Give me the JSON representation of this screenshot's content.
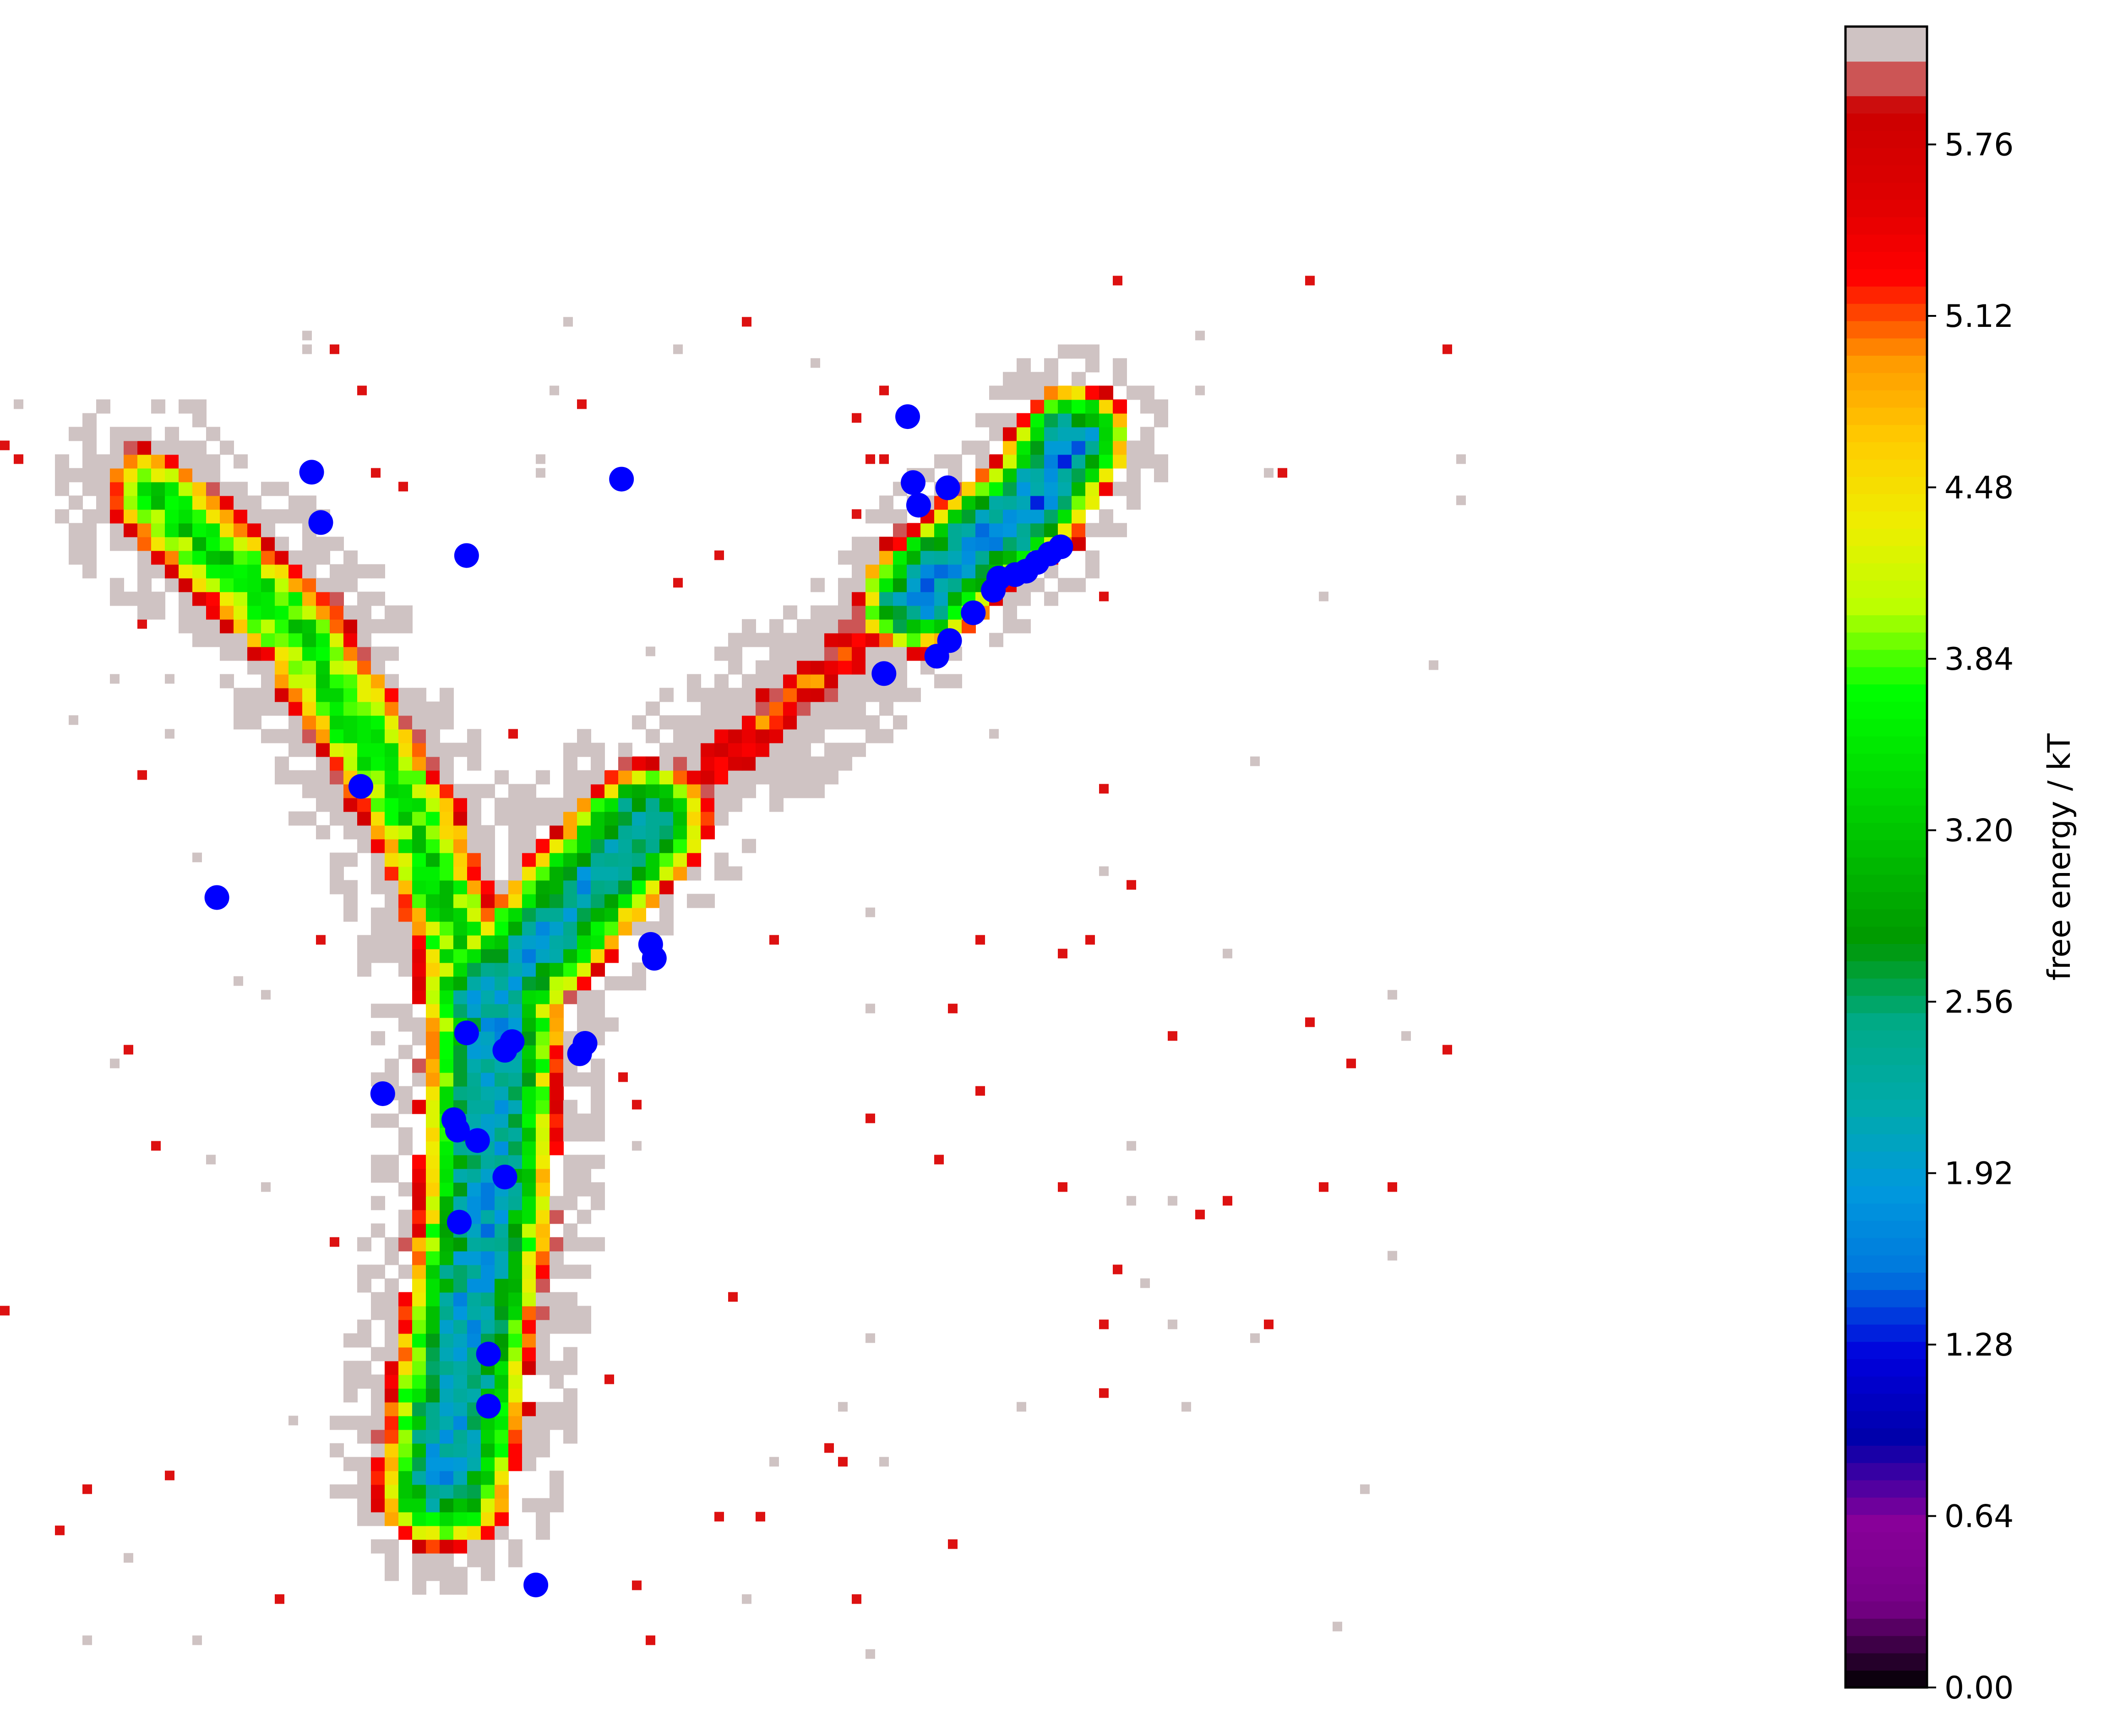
{
  "chart_data": {
    "type": "scatter",
    "description_kind": "free-energy landscape (filled contour) with overlaid cluster centers",
    "axes_visible": false,
    "colorbar": {
      "label": "free energy / kT",
      "colormap": "nipy_spectral",
      "range": [
        0.0,
        6.2
      ],
      "ticks": [
        0.0,
        0.64,
        1.28,
        1.92,
        2.56,
        3.2,
        3.84,
        4.48,
        5.12,
        5.76
      ],
      "tick_labels": [
        "0.00",
        "0.64",
        "1.28",
        "1.92",
        "2.56",
        "3.20",
        "3.84",
        "4.48",
        "5.12",
        "5.76"
      ]
    },
    "landscape": {
      "branches": [
        {
          "name": "stem",
          "path": [
            [
              0.24,
              0.15
            ],
            [
              0.262,
              0.3
            ],
            [
              0.268,
              0.42
            ]
          ],
          "width": 0.034,
          "core": 1.9
        },
        {
          "name": "upper-left-arm",
          "path": [
            [
              0.255,
              0.44
            ],
            [
              0.225,
              0.53
            ],
            [
              0.16,
              0.64
            ],
            [
              0.08,
              0.72
            ]
          ],
          "width": 0.03,
          "core": 3.4
        },
        {
          "name": "right-arm-inner",
          "path": [
            [
              0.262,
              0.43
            ],
            [
              0.3,
              0.47
            ],
            [
              0.35,
              0.53
            ]
          ],
          "width": 0.032,
          "core": 2.0
        },
        {
          "name": "right-arm-outer",
          "path": [
            [
              0.35,
              0.53
            ],
            [
              0.43,
              0.6
            ],
            [
              0.5,
              0.66
            ]
          ],
          "width": 0.026,
          "core": 5.2
        },
        {
          "name": "upper-right-arm",
          "path": [
            [
              0.5,
              0.66
            ],
            [
              0.53,
              0.69
            ],
            [
              0.56,
              0.71
            ],
            [
              0.585,
              0.75
            ]
          ],
          "width": 0.028,
          "core": 1.7
        }
      ]
    },
    "cluster_centers": {
      "color": "#0000ff",
      "points": [
        [
          0.119,
          0.483
        ],
        [
          0.171,
          0.728
        ],
        [
          0.176,
          0.699
        ],
        [
          0.21,
          0.37
        ],
        [
          0.198,
          0.547
        ],
        [
          0.256,
          0.68
        ],
        [
          0.341,
          0.724
        ],
        [
          0.359,
          0.448
        ],
        [
          0.357,
          0.456
        ],
        [
          0.256,
          0.405
        ],
        [
          0.277,
          0.395
        ],
        [
          0.281,
          0.4
        ],
        [
          0.318,
          0.393
        ],
        [
          0.321,
          0.399
        ],
        [
          0.249,
          0.355
        ],
        [
          0.251,
          0.349
        ],
        [
          0.262,
          0.343
        ],
        [
          0.277,
          0.322
        ],
        [
          0.252,
          0.296
        ],
        [
          0.268,
          0.22
        ],
        [
          0.268,
          0.19
        ],
        [
          0.294,
          0.087
        ],
        [
          0.498,
          0.76
        ],
        [
          0.501,
          0.722
        ],
        [
          0.504,
          0.709
        ],
        [
          0.52,
          0.719
        ],
        [
          0.485,
          0.612
        ],
        [
          0.514,
          0.622
        ],
        [
          0.521,
          0.631
        ],
        [
          0.534,
          0.647
        ],
        [
          0.545,
          0.66
        ],
        [
          0.548,
          0.667
        ],
        [
          0.557,
          0.669
        ],
        [
          0.563,
          0.671
        ],
        [
          0.569,
          0.676
        ],
        [
          0.576,
          0.681
        ],
        [
          0.582,
          0.685
        ]
      ]
    }
  }
}
